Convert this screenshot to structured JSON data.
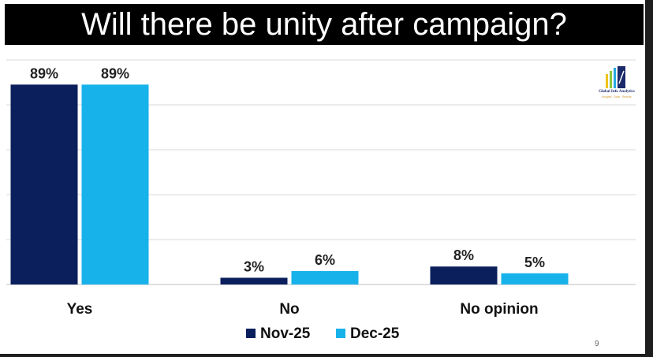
{
  "title": "Will there be unity after campaign?",
  "page_number": "9",
  "logo": {
    "name": "Global Info Analytics",
    "tagline": "Insights · Data · Results",
    "colors": [
      "#f0c419",
      "#8cc63f",
      "#27aae1",
      "#1b2a6b"
    ]
  },
  "colors": {
    "nov": "#0a1f5c",
    "dec": "#18b2ea",
    "grid": "#d9d9d9"
  },
  "chart_data": {
    "type": "bar",
    "categories": [
      "Yes",
      "No",
      "No opinion"
    ],
    "series": [
      {
        "name": "Nov-25",
        "values": [
          89,
          3,
          8
        ],
        "labels": [
          "89%",
          "3%",
          "8%"
        ]
      },
      {
        "name": "Dec-25",
        "values": [
          89,
          6,
          5
        ],
        "labels": [
          "89%",
          "6%",
          "5%"
        ]
      }
    ],
    "ylim": [
      0,
      100
    ],
    "grid": true,
    "legend": "bottom-center"
  }
}
